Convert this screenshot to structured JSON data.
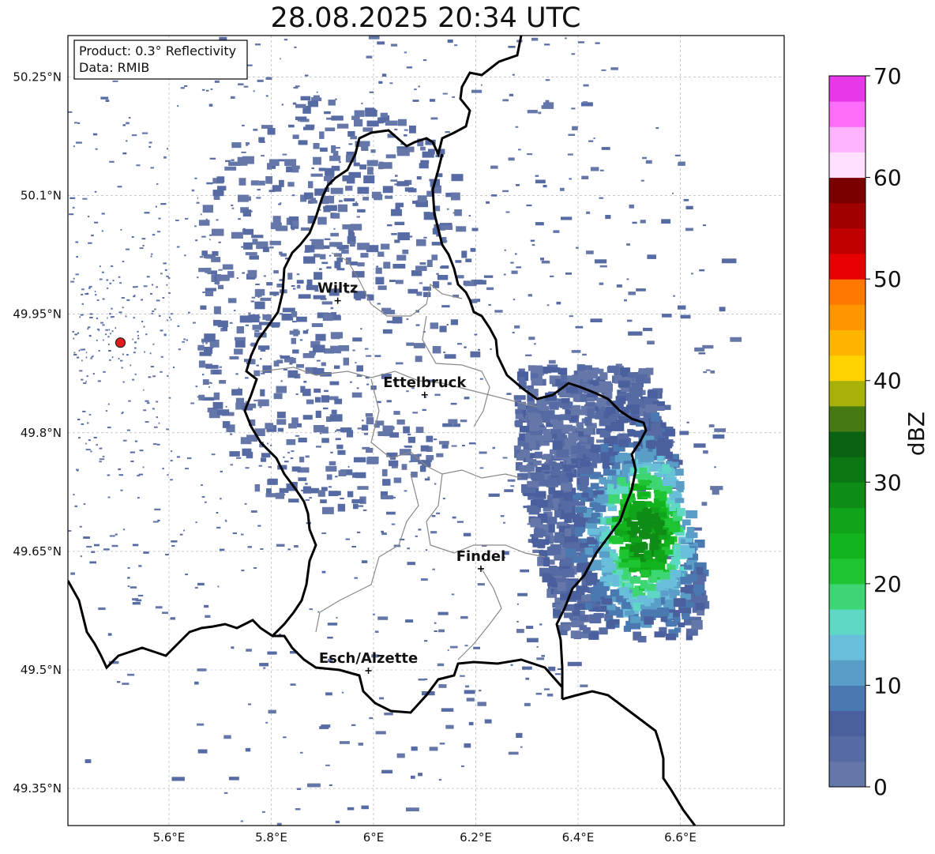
{
  "title": "28.08.2025 20:34 UTC",
  "info_box": {
    "product": "Product: 0.3° Reflectivity",
    "data": "Data: RMIB"
  },
  "map": {
    "lon_range": [
      5.4,
      6.8
    ],
    "lat_range": [
      49.3,
      50.3
    ],
    "lon_ticks": [
      {
        "value": 5.6,
        "label": "5.6°E"
      },
      {
        "value": 5.8,
        "label": "5.8°E"
      },
      {
        "value": 6.0,
        "label": "6°E"
      },
      {
        "value": 6.2,
        "label": "6.2°E"
      },
      {
        "value": 6.4,
        "label": "6.4°E"
      },
      {
        "value": 6.6,
        "label": "6.6°E"
      }
    ],
    "lat_ticks": [
      {
        "value": 50.25,
        "label": "50.25°N"
      },
      {
        "value": 50.1,
        "label": "50.1°N"
      },
      {
        "value": 49.95,
        "label": "49.95°N"
      },
      {
        "value": 49.8,
        "label": "49.8°N"
      },
      {
        "value": 49.65,
        "label": "49.65°N"
      },
      {
        "value": 49.5,
        "label": "49.5°N"
      },
      {
        "value": 49.35,
        "label": "49.35°N"
      }
    ],
    "cities": [
      {
        "name": "Wiltz",
        "lon": 5.93,
        "lat": 49.967
      },
      {
        "name": "Ettelbruck",
        "lon": 6.1,
        "lat": 49.848
      },
      {
        "name": "Findel",
        "lon": 6.21,
        "lat": 49.628
      },
      {
        "name": "Esch/Alzette",
        "lon": 5.99,
        "lat": 49.499
      }
    ],
    "radar_site": {
      "lon": 5.505,
      "lat": 49.914,
      "color": "#e31a1c"
    }
  },
  "colorbar": {
    "label": "dBZ",
    "min": 0,
    "max": 70,
    "ticks": [
      {
        "value": 0,
        "label": "0"
      },
      {
        "value": 10,
        "label": "10"
      },
      {
        "value": 20,
        "label": "20"
      },
      {
        "value": 30,
        "label": "30"
      },
      {
        "value": 40,
        "label": "40"
      },
      {
        "value": 50,
        "label": "50"
      },
      {
        "value": 60,
        "label": "60"
      },
      {
        "value": 70,
        "label": "70"
      }
    ],
    "colors": [
      "#6576a8",
      "#566aa3",
      "#4a5f9e",
      "#4a78b0",
      "#5a9ec8",
      "#69bedb",
      "#5ed8c4",
      "#3ed672",
      "#1ec432",
      "#12b41e",
      "#10a41a",
      "#0e8c16",
      "#0b7614",
      "#0a6212",
      "#457a12",
      "#a8b00a",
      "#ffd200",
      "#ffb400",
      "#ff9600",
      "#ff7800",
      "#e60000",
      "#c00000",
      "#a00000",
      "#7a0000",
      "#ffe1ff",
      "#ffb4ff",
      "#ff6ef8",
      "#e837e8"
    ]
  }
}
